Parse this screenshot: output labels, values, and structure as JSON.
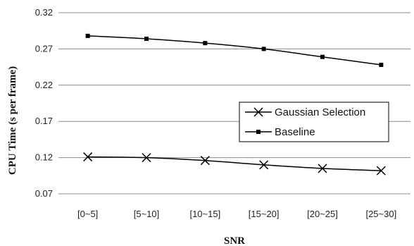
{
  "chart_data": {
    "type": "line",
    "title": "",
    "xlabel": "SNR",
    "ylabel": "CPU Time (s per frame)",
    "categories": [
      "[0~5]",
      "[5~10]",
      "[10~15]",
      "[15~20]",
      "[20~25]",
      "[25~30]"
    ],
    "ylim": [
      0.07,
      0.32
    ],
    "yticks": [
      "0.07",
      "0.12",
      "0.17",
      "0.22",
      "0.27",
      "0.32"
    ],
    "grid": true,
    "legend_position": "right-center",
    "series": [
      {
        "name": "Gaussian Selection",
        "values": [
          0.121,
          0.12,
          0.116,
          0.11,
          0.105,
          0.102
        ],
        "marker": "x",
        "color": "#000000"
      },
      {
        "name": "Baseline",
        "values": [
          0.288,
          0.284,
          0.278,
          0.27,
          0.259,
          0.248
        ],
        "marker": "square",
        "color": "#000000"
      }
    ]
  }
}
